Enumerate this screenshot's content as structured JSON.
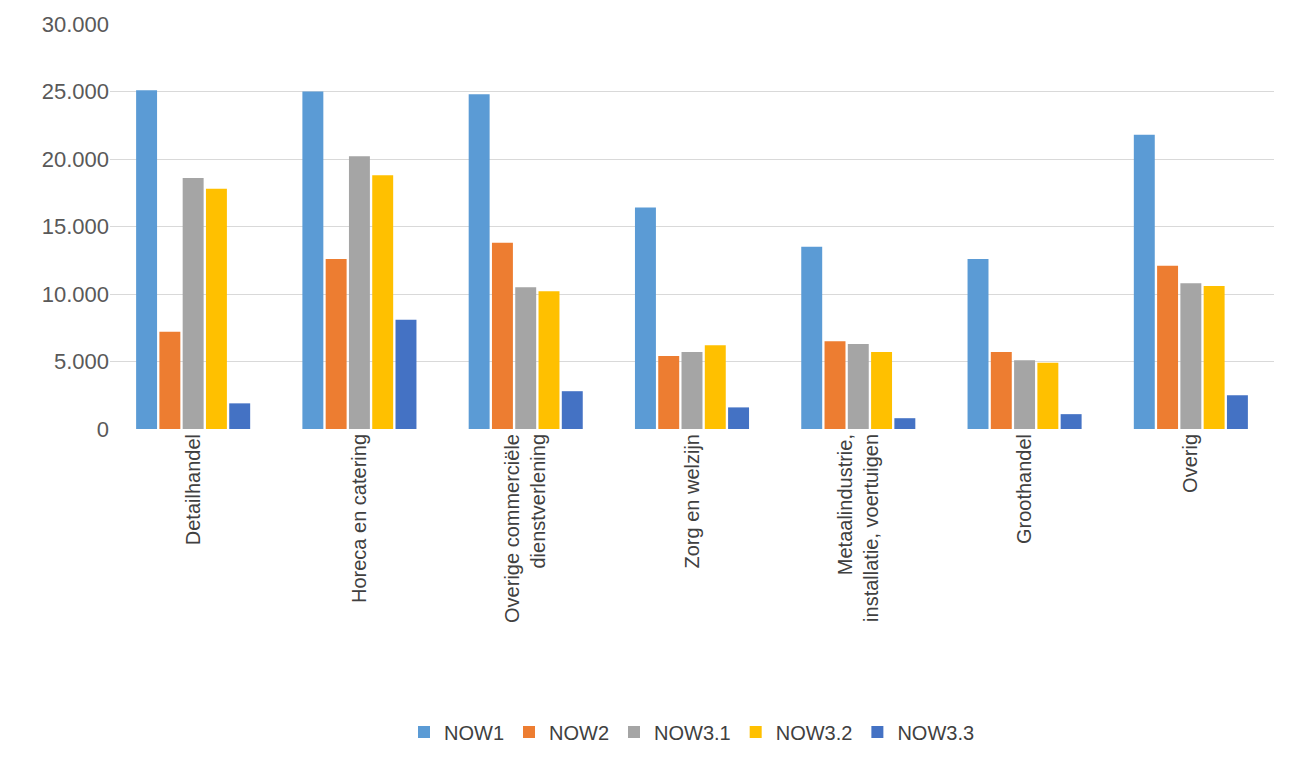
{
  "chart_data": {
    "type": "bar",
    "categories": [
      "Detailhandel",
      "Horeca en catering",
      "Overige commerciële dienstverlening",
      "Zorg en welzijn",
      "Metaalindustrie, installatie, voertuigen",
      "Groothandel",
      "Overig"
    ],
    "series": [
      {
        "name": "NOW1",
        "color": "#5b9bd5",
        "values": [
          25100,
          25000,
          24800,
          16400,
          13500,
          12600,
          21800
        ]
      },
      {
        "name": "NOW2",
        "color": "#ed7d31",
        "values": [
          7200,
          12600,
          13800,
          5400,
          6500,
          5700,
          12100
        ]
      },
      {
        "name": "NOW3.1",
        "color": "#a5a5a5",
        "values": [
          18600,
          20200,
          10500,
          5700,
          6300,
          5100,
          10800
        ]
      },
      {
        "name": "NOW3.2",
        "color": "#ffc000",
        "values": [
          17800,
          18800,
          10200,
          6200,
          5700,
          4900,
          10600
        ]
      },
      {
        "name": "NOW3.3",
        "color": "#4472c4",
        "values": [
          1900,
          8100,
          2800,
          1600,
          800,
          1100,
          2500
        ]
      }
    ],
    "ylim": [
      0,
      30000
    ],
    "yticks": [
      0,
      {
        "value": 5000,
        "label": "5.000"
      },
      {
        "value": 10000,
        "label": "10.000"
      },
      {
        "value": 15000,
        "label": "15.000"
      },
      {
        "value": 20000,
        "label": "20.000"
      },
      {
        "value": 25000,
        "label": "25.000"
      },
      {
        "value": 30000,
        "label": "30.000"
      }
    ],
    "grid": true,
    "legend": "bottom"
  }
}
